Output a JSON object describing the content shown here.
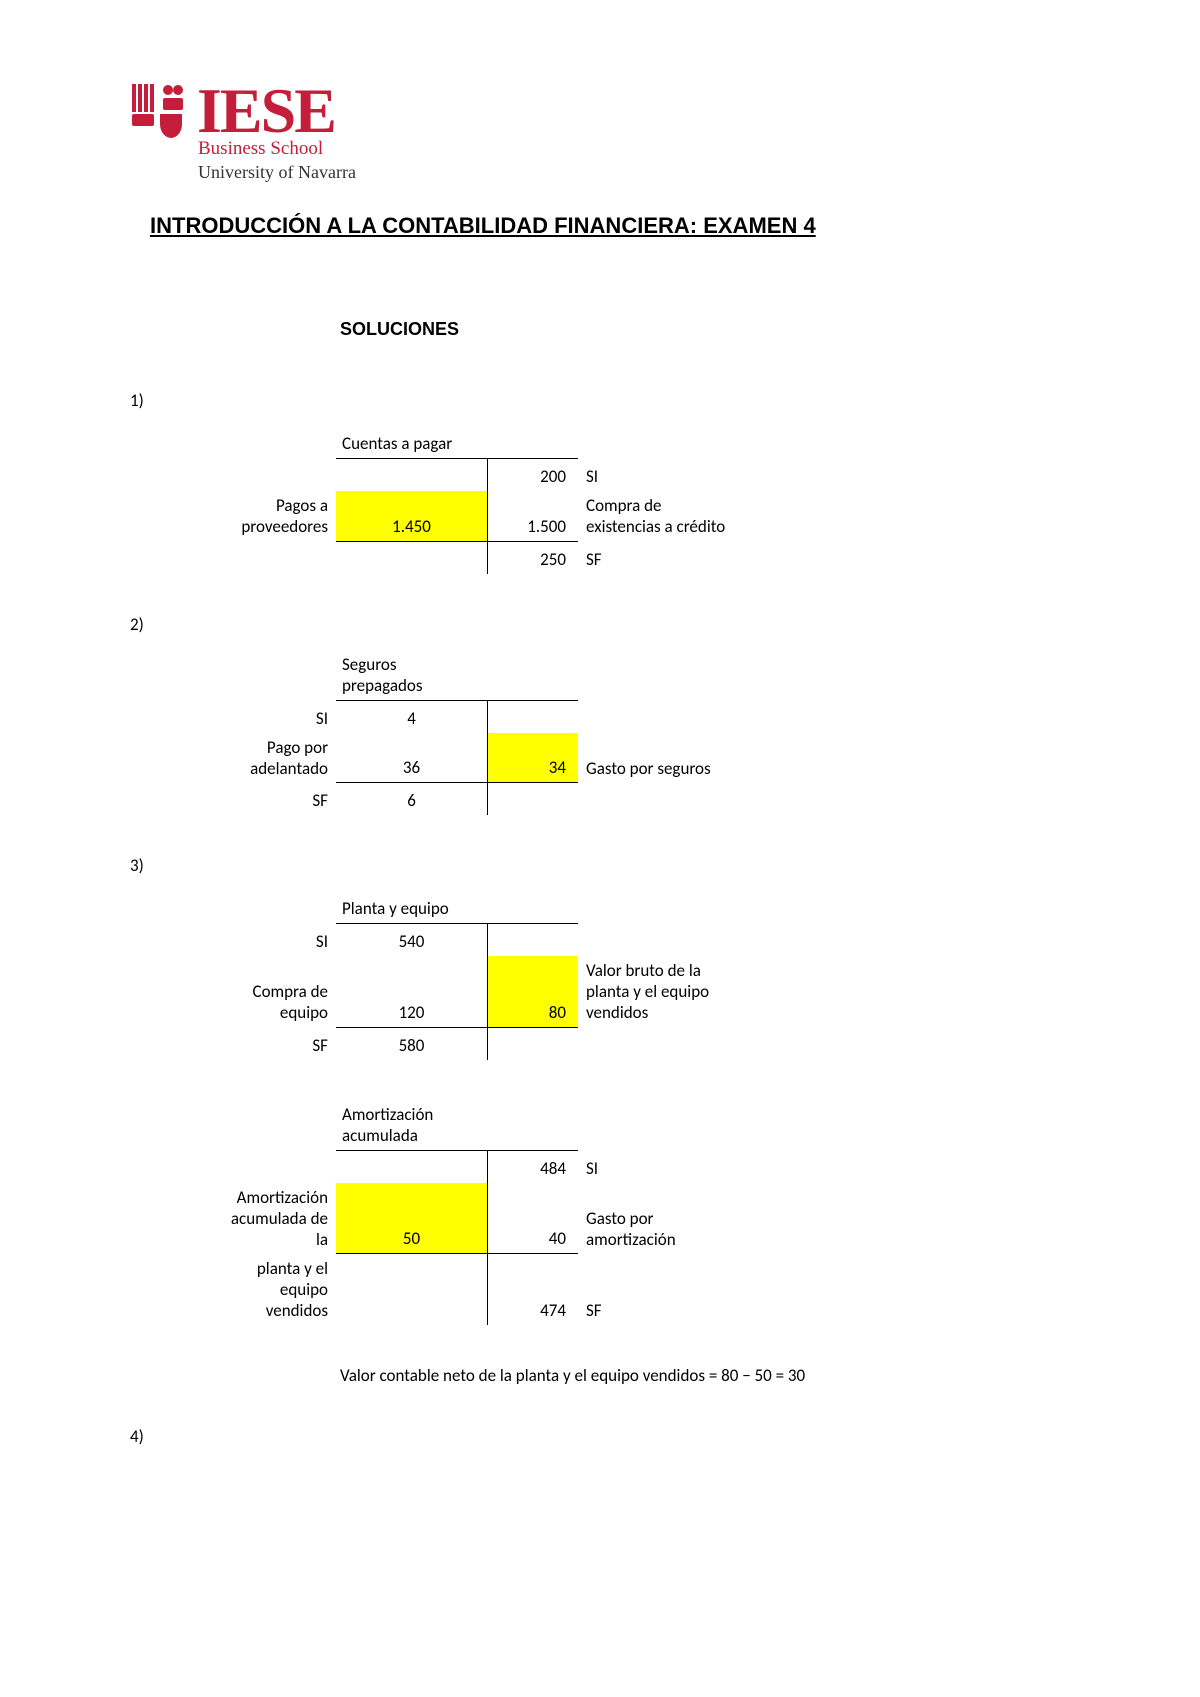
{
  "logo_text": "IESE",
  "logo_sub1": "Business School",
  "logo_sub2": "University of Navarra",
  "logo_color": "#c41e3a",
  "highlight_color": "#ffff00",
  "title": "INTRODUCCIÓN A LA CONTABILIDAD FINANCIERA: EXAMEN 4",
  "subtitle": "SOLUCIONES",
  "q1": {
    "num": "1)",
    "account_title": "Cuentas a pagar",
    "rows": [
      {
        "ll": "",
        "d": "",
        "c": "200",
        "rl": "SI"
      },
      {
        "ll": "Pagos a proveedores",
        "d": "1.450",
        "d_hl": true,
        "c": "1.500",
        "rl": "Compra de existencias a crédito"
      },
      {
        "ll": "",
        "d": "",
        "c": "250",
        "rl": "SF",
        "sum": true
      }
    ]
  },
  "q2": {
    "num": "2)",
    "account_title": "Seguros prepagados",
    "rows": [
      {
        "ll": "SI",
        "d": "4",
        "c": "",
        "rl": ""
      },
      {
        "ll": "Pago por adelantado",
        "d": "36",
        "c": "34",
        "c_hl": true,
        "rl": "Gasto por seguros"
      },
      {
        "ll": "SF",
        "d": "6",
        "c": "",
        "rl": "",
        "sum": true
      }
    ]
  },
  "q3": {
    "num": "3)",
    "t1": {
      "account_title": "Planta y equipo",
      "rows": [
        {
          "ll": "SI",
          "d": "540",
          "c": "",
          "rl": ""
        },
        {
          "ll": "Compra de equipo",
          "d": "120",
          "c": "80",
          "c_hl": true,
          "rl": "Valor bruto de la planta y el equipo vendidos"
        },
        {
          "ll": "SF",
          "d": "580",
          "c": "",
          "rl": "",
          "sum": true
        }
      ]
    },
    "t2": {
      "account_title": "Amortización acumulada",
      "rows": [
        {
          "ll": "",
          "d": "",
          "c": "484",
          "rl": "SI"
        },
        {
          "ll": "Amortización acumulada de la",
          "d": "50",
          "d_hl": true,
          "c": "40",
          "rl": "Gasto por amortización"
        },
        {
          "ll": "planta y el equipo vendidos",
          "d": "",
          "c": "474",
          "rl": "SF",
          "sum": true
        }
      ]
    },
    "note": "Valor contable neto de la planta y el equipo vendidos = 80 − 50 = 30"
  },
  "q4": {
    "num": "4)"
  }
}
